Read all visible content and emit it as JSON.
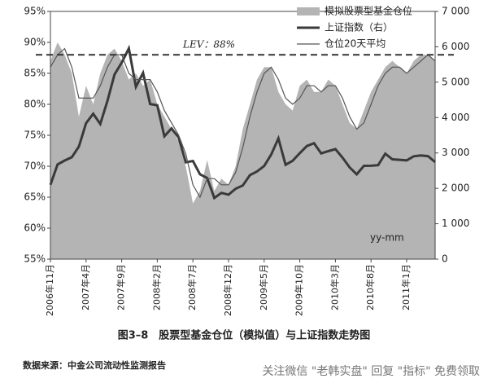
{
  "chart_data": {
    "type": "area-line",
    "title": "图3–8　股票型基金仓位（模拟值）与上证指数走势图",
    "source": "数据来源：中金公司流动性监测报告",
    "watermark": "关注微信 \"老韩实盘\" 回复 \"指标\" 免费领取",
    "x_label": "yy-mm",
    "categories": [
      "2006年11月",
      null,
      null,
      null,
      null,
      "2007年4月",
      null,
      null,
      null,
      null,
      "2007年9月",
      null,
      null,
      null,
      null,
      "2008年2月",
      null,
      null,
      null,
      null,
      "2008年7月",
      null,
      null,
      null,
      null,
      "2008年12月",
      null,
      null,
      null,
      null,
      "2009年5月",
      null,
      null,
      null,
      null,
      "2009年10月",
      null,
      null,
      null,
      null,
      "2010年3月",
      null,
      null,
      null,
      null,
      "2010年8月",
      null,
      null,
      null,
      null,
      "2011年1月",
      null,
      null,
      null,
      null
    ],
    "series": [
      {
        "name": "模拟股票型基金仓位",
        "kind": "area",
        "color": "#b4b4b4",
        "axis": "y",
        "values": [
          87,
          90,
          88,
          85,
          78,
          83,
          80,
          85,
          88,
          89,
          87,
          84,
          85,
          83,
          84,
          80,
          78,
          76,
          74,
          70,
          64,
          66,
          71,
          66,
          68,
          67,
          70,
          76,
          80,
          84,
          86,
          86,
          82,
          80,
          79,
          83,
          84,
          82,
          82,
          84,
          83,
          80,
          77,
          76,
          79,
          82,
          84,
          86,
          87,
          86,
          85,
          87,
          88,
          88,
          87
        ]
      },
      {
        "name": "上证指数（右）",
        "kind": "line",
        "color": "#3a3a3a",
        "axis": "y2",
        "values": [
          2100,
          2675,
          2786,
          2881,
          3183,
          3841,
          4109,
          3820,
          4471,
          5218,
          5552,
          5954,
          4871,
          5261,
          4383,
          4348,
          3472,
          3693,
          3433,
          2736,
          2775,
          2397,
          2293,
          1728,
          1871,
          1821,
          1990,
          2082,
          2373,
          2477,
          2632,
          2959,
          3412,
          2667,
          2779,
          2996,
          3195,
          3277,
          2989,
          3051,
          3109,
          2870,
          2592,
          2398,
          2637,
          2638,
          2655,
          2979,
          2820,
          2808,
          2790,
          2905,
          2928,
          2911,
          2743
        ]
      },
      {
        "name": "仓位20天平均",
        "kind": "line",
        "color": "#555555",
        "axis": "y",
        "values": [
          86,
          88,
          89,
          86,
          81,
          81,
          81,
          83,
          86,
          88,
          88,
          85,
          84,
          84,
          84,
          82,
          79,
          77,
          75,
          72,
          67,
          65,
          68,
          68,
          67,
          67,
          69,
          73,
          78,
          82,
          85,
          86,
          84,
          81,
          80,
          81,
          83,
          83,
          82,
          83,
          83,
          81,
          78,
          76,
          77,
          80,
          83,
          85,
          86,
          86,
          85,
          86,
          87,
          88,
          87
        ]
      }
    ],
    "lev": {
      "value": 88,
      "label": "LEV：88%"
    },
    "ylim": [
      55,
      95
    ],
    "yticks": [
      {
        "value": 55,
        "label": "55%"
      },
      {
        "value": 60,
        "label": "60%"
      },
      {
        "value": 65,
        "label": "65%"
      },
      {
        "value": 70,
        "label": "70%"
      },
      {
        "value": 75,
        "label": "75%"
      },
      {
        "value": 80,
        "label": "80%"
      },
      {
        "value": 85,
        "label": "85%"
      },
      {
        "value": 90,
        "label": "90%"
      },
      {
        "value": 95,
        "label": "95%"
      }
    ],
    "y2lim": [
      0,
      7000
    ],
    "y2ticks": [
      0,
      {
        "value": 1000,
        "label": "1 000"
      },
      {
        "value": 2000,
        "label": "2 000"
      },
      {
        "value": 3000,
        "label": "3 000"
      },
      {
        "value": 4000,
        "label": "4 000"
      },
      {
        "value": 5000,
        "label": "5 000"
      },
      {
        "value": 6000,
        "label": "6 000"
      },
      {
        "value": 7000,
        "label": "7 000"
      }
    ]
  }
}
